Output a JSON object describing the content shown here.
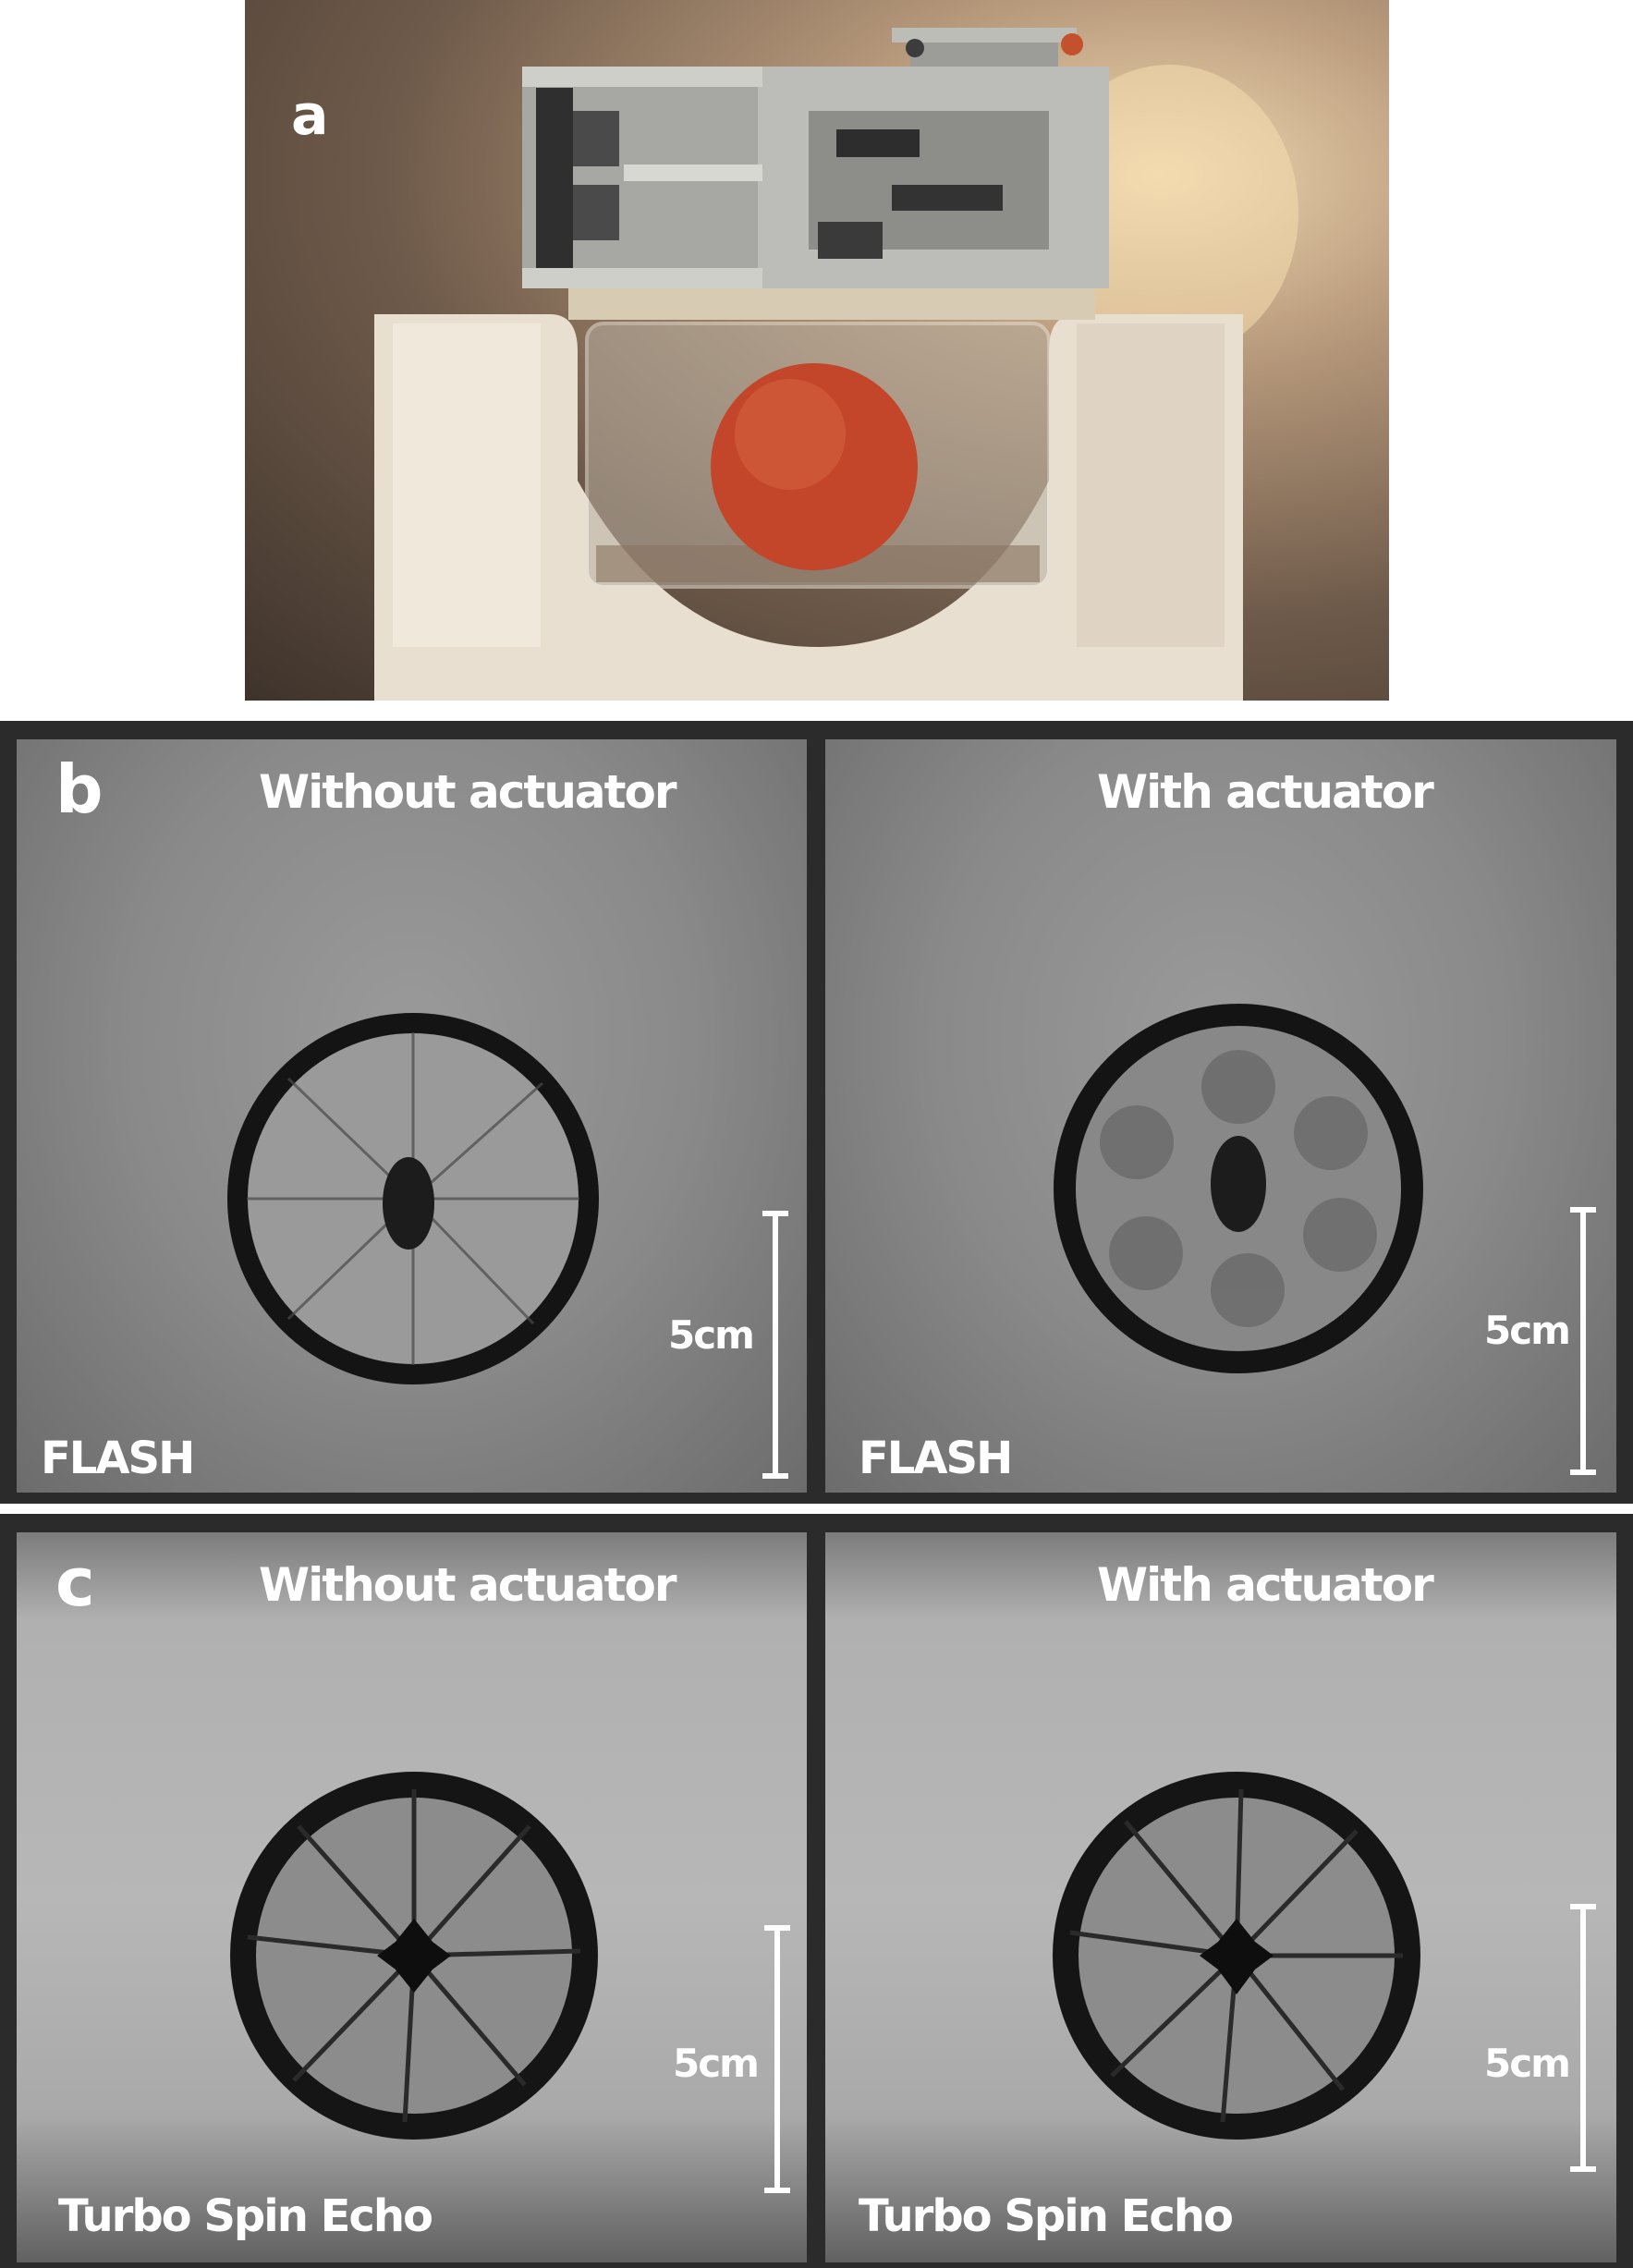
{
  "panel_a": {
    "letter": "a"
  },
  "panel_b": {
    "letter": "b",
    "left": {
      "title": "Without actuator",
      "sequence": "FLASH",
      "scale": "5cm"
    },
    "right": {
      "title": "With actuator",
      "sequence": "FLASH",
      "scale": "5cm"
    }
  },
  "panel_c": {
    "letter": "c",
    "left": {
      "title": "Without actuator",
      "sequence": "Turbo Spin Echo",
      "scale": "5cm"
    },
    "right": {
      "title": "With actuator",
      "sequence": "Turbo Spin Echo",
      "scale": "5cm"
    }
  },
  "colors": {
    "fruit": "#c4462a",
    "background": "#ffffff",
    "mri_border": "#2b2b2b"
  }
}
